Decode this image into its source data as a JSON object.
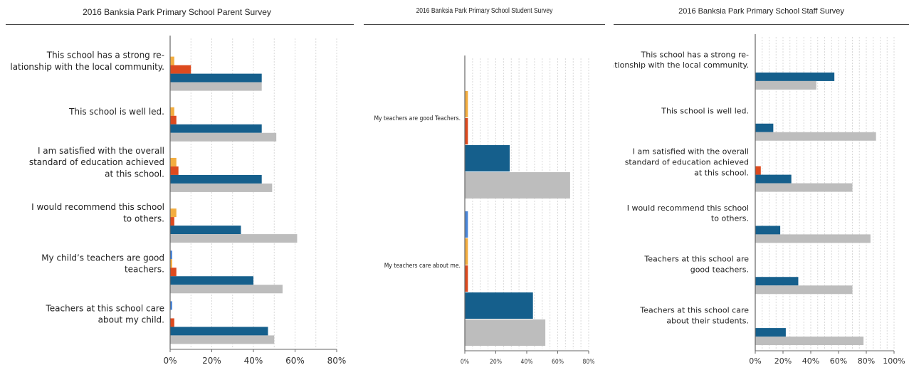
{
  "colors": {
    "blue": "#4a86d8",
    "orange": "#f3ad3f",
    "red": "#dd4a1e",
    "teal": "#155f8c",
    "gray": "#bdbdbd",
    "grid": "#d9d9d9",
    "axis": "#666666"
  },
  "chart_data": [
    {
      "type": "bar",
      "orientation": "horizontal",
      "title": "2016 Banksia Park Primary School Parent Survey",
      "categories": [
        "This school has a strong re-\nlationship with the local community.",
        "This school is well led.",
        "I am satisfied with the overall\nstandard of education achieved\nat this school.",
        "I would recommend this school\nto others.",
        "My child’s teachers are good\nteachers.",
        "Teachers at this school care\nabout my child."
      ],
      "series": [
        {
          "color": "blue",
          "values": [
            0,
            0,
            0,
            0,
            1,
            1
          ]
        },
        {
          "color": "orange",
          "values": [
            2,
            2,
            3,
            3,
            1,
            0
          ]
        },
        {
          "color": "red",
          "values": [
            10,
            3,
            4,
            2,
            3,
            2
          ]
        },
        {
          "color": "teal",
          "values": [
            44,
            44,
            44,
            34,
            40,
            47
          ]
        },
        {
          "color": "gray",
          "values": [
            44,
            51,
            49,
            61,
            54,
            50
          ]
        }
      ],
      "xlim": [
        0,
        80
      ],
      "xticks": [
        "0%",
        "20%",
        "40%",
        "60%",
        "80%"
      ],
      "grid": true
    },
    {
      "type": "bar",
      "orientation": "horizontal",
      "title": "2016 Banksia Park Primary School Student Survey",
      "categories": [
        "My teachers are good Teachers.",
        "My teachers care about me."
      ],
      "series": [
        {
          "color": "blue",
          "values": [
            0,
            2
          ]
        },
        {
          "color": "orange",
          "values": [
            2,
            2
          ]
        },
        {
          "color": "red",
          "values": [
            2,
            2
          ]
        },
        {
          "color": "teal",
          "values": [
            29,
            44
          ]
        },
        {
          "color": "gray",
          "values": [
            68,
            52
          ]
        }
      ],
      "xlim": [
        0,
        80
      ],
      "xticks": [
        "0%",
        "20%",
        "40%",
        "60%",
        "80%"
      ],
      "grid": true
    },
    {
      "type": "bar",
      "orientation": "horizontal",
      "title": "2016 Banksia Park Primary School Staff Survey",
      "categories": [
        "This school has a strong re-\nlationship with the local community.",
        "This school is well led.",
        "I am satisfied with the overall\nstandard of education achieved\nat this school.",
        "I would recommend this school\nto others.",
        "Teachers at this school are\ngood teachers.",
        "Teachers at this school care\nabout their students."
      ],
      "series": [
        {
          "color": "blue",
          "values": [
            0,
            0,
            0,
            0,
            0,
            0
          ]
        },
        {
          "color": "orange",
          "values": [
            0,
            0,
            0,
            0,
            0,
            0
          ]
        },
        {
          "color": "red",
          "values": [
            0,
            0,
            4,
            0,
            0,
            0
          ]
        },
        {
          "color": "teal",
          "values": [
            57,
            13,
            26,
            18,
            31,
            22
          ]
        },
        {
          "color": "gray",
          "values": [
            44,
            87,
            70,
            83,
            70,
            78
          ]
        }
      ],
      "xlim": [
        0,
        100
      ],
      "xticks": [
        "0%",
        "20%",
        "40%",
        "60%",
        "80%",
        "100%"
      ],
      "grid": true
    }
  ]
}
